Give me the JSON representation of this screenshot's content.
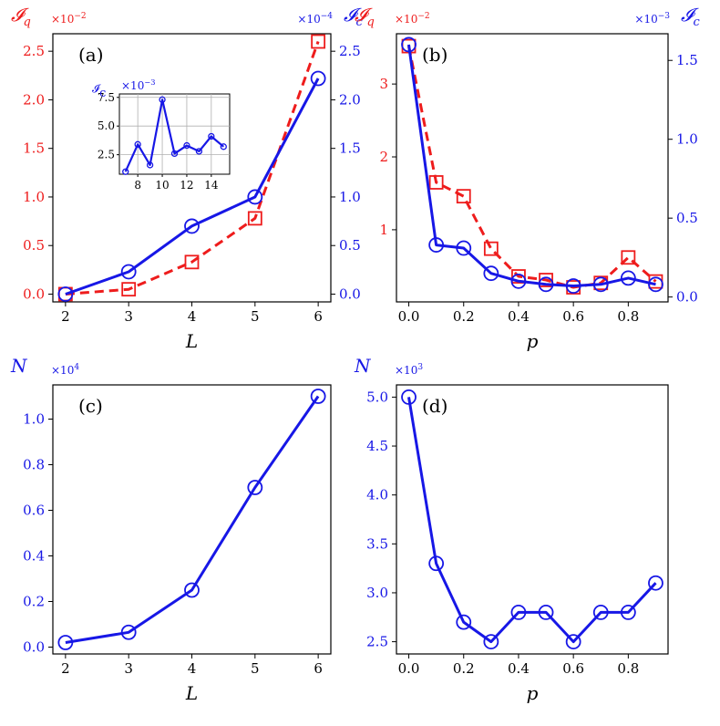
{
  "colors": {
    "red": "#ee1c1c",
    "blue": "#1717e6",
    "black": "#000000",
    "grid": "#b0b0b0"
  },
  "chart_data": [
    {
      "id": "a",
      "type": "line",
      "panel_label": "(a)",
      "xlabel": "L",
      "x": [
        2,
        3,
        4,
        5,
        6
      ],
      "xticks": [
        "2",
        "3",
        "4",
        "5",
        "6"
      ],
      "xlim": [
        1.8,
        6.2
      ],
      "left_axis": {
        "label": "𝓘",
        "label_sub": "q",
        "multiplier": "×10",
        "multiplier_exp": "−2",
        "ylim": [
          -0.0008,
          0.0268
        ],
        "ticks": [
          0,
          0.005,
          0.01,
          0.015,
          0.02,
          0.025
        ],
        "tick_labels": [
          "0.0",
          "0.5",
          "1.0",
          "1.5",
          "2.0",
          "2.5"
        ]
      },
      "right_axis": {
        "label": "𝓘",
        "label_sub": "c",
        "multiplier": "×10",
        "multiplier_exp": "−4",
        "ylim": [
          -8e-06,
          0.000268
        ],
        "ticks": [
          0,
          5e-05,
          0.0001,
          0.00015,
          0.0002,
          0.00025
        ],
        "tick_labels": [
          "0.0",
          "0.5",
          "1.0",
          "1.5",
          "2.0",
          "2.5"
        ]
      },
      "series": [
        {
          "name": "I_q",
          "axis": "left",
          "color": "red",
          "style": "dashed",
          "marker": "square",
          "values": [
            0,
            0.0005,
            0.0033,
            0.0078,
            0.026
          ]
        },
        {
          "name": "I_c",
          "axis": "right",
          "color": "blue",
          "style": "solid",
          "marker": "circle",
          "values": [
            0,
            2.3e-05,
            7e-05,
            0.0001,
            0.000222
          ]
        }
      ],
      "inset": {
        "type": "line",
        "ylabel": "𝓘",
        "ylabel_sub": "c",
        "multiplier": "×10",
        "multiplier_exp": "−3",
        "x": [
          7,
          8,
          9,
          10,
          11,
          12,
          13,
          14,
          15
        ],
        "values": [
          0.00102,
          0.0034,
          0.0016,
          0.0073,
          0.0026,
          0.0033,
          0.0028,
          0.0041,
          0.0032
        ],
        "xlim": [
          6.5,
          15.5
        ],
        "ylim": [
          0.0008,
          0.0078
        ],
        "xticks": [
          8,
          10,
          12,
          14
        ],
        "xtick_labels": [
          "8",
          "10",
          "12",
          "14"
        ],
        "yticks": [
          0.0025,
          0.005,
          0.0075
        ],
        "ytick_labels": [
          "2.5",
          "5.0",
          "7.5"
        ],
        "grid": true
      }
    },
    {
      "id": "b",
      "type": "line",
      "panel_label": "(b)",
      "xlabel": "p",
      "x": [
        0,
        0.1,
        0.2,
        0.3,
        0.4,
        0.5,
        0.6,
        0.7,
        0.8,
        0.9
      ],
      "xticks": [
        "0.0",
        "0.2",
        "0.4",
        "0.6",
        "0.8"
      ],
      "xtick_values": [
        0,
        0.2,
        0.4,
        0.6,
        0.8
      ],
      "xlim": [
        -0.045,
        0.945
      ],
      "left_axis": {
        "label": "𝓘",
        "label_sub": "q",
        "multiplier": "×10",
        "multiplier_exp": "−2",
        "ylim": [
          0.0001,
          0.0369
        ],
        "ticks": [
          0.01,
          0.02,
          0.03
        ],
        "tick_labels": [
          "1",
          "2",
          "3"
        ]
      },
      "right_axis": {
        "label": "𝓘",
        "label_sub": "c",
        "multiplier": "×10",
        "multiplier_exp": "−3",
        "ylim": [
          -3.1e-05,
          0.001669
        ],
        "ticks": [
          0,
          0.0005,
          0.001,
          0.0015
        ],
        "tick_labels": [
          "0.0",
          "0.5",
          "1.0",
          "1.5"
        ]
      },
      "series": [
        {
          "name": "I_q",
          "axis": "left",
          "color": "red",
          "style": "dashed",
          "marker": "square",
          "values": [
            0.0352,
            0.0165,
            0.0146,
            0.0074,
            0.0036,
            0.0031,
            0.0021,
            0.0027,
            0.0062,
            0.0029
          ]
        },
        {
          "name": "I_c",
          "axis": "right",
          "color": "blue",
          "style": "solid",
          "marker": "circle",
          "values": [
            0.0016,
            0.00033,
            0.00031,
            0.00015,
            0.0001,
            8e-05,
            7e-05,
            8e-05,
            0.00012,
            8e-05
          ]
        }
      ]
    },
    {
      "id": "c",
      "type": "line",
      "panel_label": "(c)",
      "xlabel": "L",
      "x": [
        2,
        3,
        4,
        5,
        6
      ],
      "xticks": [
        "2",
        "3",
        "4",
        "5",
        "6"
      ],
      "xlim": [
        1.8,
        6.2
      ],
      "left_axis": {
        "label": "N",
        "multiplier": "×10",
        "multiplier_exp": "4",
        "ylim": [
          -300,
          11500
        ],
        "ticks": [
          0,
          2000,
          4000,
          6000,
          8000,
          10000
        ],
        "tick_labels": [
          "0.0",
          "0.2",
          "0.4",
          "0.6",
          "0.8",
          "1.0"
        ]
      },
      "series": [
        {
          "name": "N",
          "axis": "left",
          "color": "blue",
          "style": "solid",
          "marker": "circle",
          "values": [
            200,
            650,
            2500,
            7000,
            11000
          ]
        }
      ]
    },
    {
      "id": "d",
      "type": "line",
      "panel_label": "(d)",
      "xlabel": "p",
      "x": [
        0,
        0.1,
        0.2,
        0.3,
        0.4,
        0.5,
        0.6,
        0.7,
        0.8,
        0.9
      ],
      "xticks": [
        "0.0",
        "0.2",
        "0.4",
        "0.6",
        "0.8"
      ],
      "xtick_values": [
        0,
        0.2,
        0.4,
        0.6,
        0.8
      ],
      "xlim": [
        -0.045,
        0.945
      ],
      "left_axis": {
        "label": "N",
        "multiplier": "×10",
        "multiplier_exp": "3",
        "ylim": [
          2375,
          5125
        ],
        "ticks": [
          2500,
          3000,
          3500,
          4000,
          4500,
          5000
        ],
        "tick_labels": [
          "2.5",
          "3.0",
          "3.5",
          "4.0",
          "4.5",
          "5.0"
        ]
      },
      "series": [
        {
          "name": "N",
          "axis": "left",
          "color": "blue",
          "style": "solid",
          "marker": "circle",
          "values": [
            5000,
            3300,
            2700,
            2500,
            2800,
            2800,
            2500,
            2800,
            2800,
            3100
          ]
        }
      ]
    }
  ]
}
